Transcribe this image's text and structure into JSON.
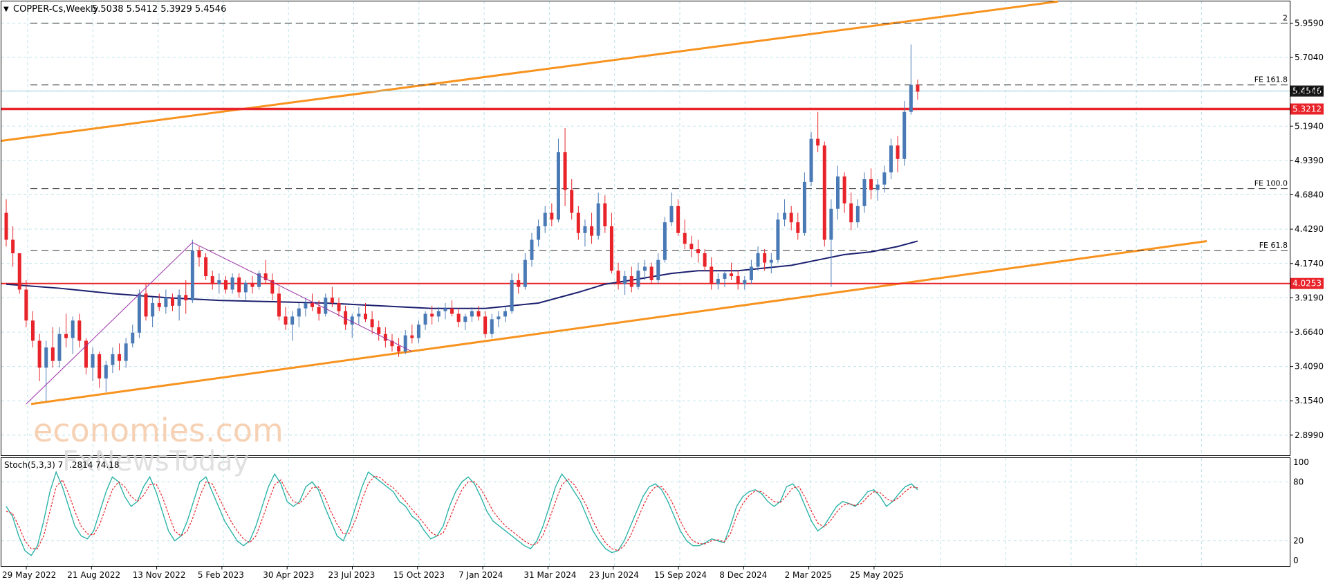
{
  "header": {
    "symbol_label": "COPPER-Cs,Weekly",
    "ohlc": "5.5038 5.5412 5.3929 5.4546"
  },
  "chart_data": [
    {
      "type": "candlestick",
      "title": "COPPER-Cs,Weekly",
      "ylim": [
        2.78,
        6.1
      ],
      "y_ticks": [
        "5.9590",
        "5.7040",
        "5.4546",
        "5.1940",
        "4.9390",
        "4.6840",
        "4.4290",
        "4.1740",
        "3.9190",
        "3.6640",
        "3.4090",
        "3.1540",
        "2.8990"
      ],
      "x_tick_labels": [
        "29 May 2022",
        "21 Aug 2022",
        "13 Nov 2022",
        "5 Feb 2023",
        "30 Apr 2023",
        "23 Jul 2023",
        "15 Oct 2023",
        "7 Jan 2024",
        "31 Mar 2024",
        "23 Jun 2024",
        "15 Sep 2024",
        "8 Dec 2024",
        "2 Mar 2025",
        "25 May 2025"
      ],
      "grid": true,
      "colors": {
        "up": "#4a7ab5",
        "down": "#e8242a",
        "ma": "#1b1f6e",
        "channel": "#f7931e",
        "level": "#e8242a",
        "wedge": "#9b30a8"
      },
      "candles_ohlc": [
        [
          4.55,
          4.65,
          4.3,
          4.35
        ],
        [
          4.35,
          4.45,
          4.15,
          4.25
        ],
        [
          4.25,
          4.2,
          3.95,
          3.98
        ],
        [
          3.98,
          4.05,
          3.7,
          3.75
        ],
        [
          3.75,
          3.82,
          3.55,
          3.6
        ],
        [
          3.6,
          3.65,
          3.3,
          3.4
        ],
        [
          3.4,
          3.6,
          3.15,
          3.55
        ],
        [
          3.55,
          3.7,
          3.4,
          3.45
        ],
        [
          3.45,
          3.7,
          3.4,
          3.65
        ],
        [
          3.65,
          3.8,
          3.55,
          3.62
        ],
        [
          3.62,
          3.78,
          3.5,
          3.75
        ],
        [
          3.75,
          3.8,
          3.55,
          3.6
        ],
        [
          3.6,
          3.62,
          3.35,
          3.4
        ],
        [
          3.4,
          3.55,
          3.3,
          3.5
        ],
        [
          3.5,
          3.52,
          3.25,
          3.32
        ],
        [
          3.32,
          3.45,
          3.22,
          3.42
        ],
        [
          3.42,
          3.55,
          3.36,
          3.5
        ],
        [
          3.5,
          3.58,
          3.38,
          3.45
        ],
        [
          3.45,
          3.62,
          3.4,
          3.58
        ],
        [
          3.58,
          3.72,
          3.55,
          3.66
        ],
        [
          3.66,
          3.98,
          3.62,
          3.95
        ],
        [
          3.95,
          4.02,
          3.75,
          3.78
        ],
        [
          3.78,
          3.92,
          3.7,
          3.88
        ],
        [
          3.88,
          3.95,
          3.82,
          3.85
        ],
        [
          3.85,
          3.98,
          3.8,
          3.92
        ],
        [
          3.92,
          3.95,
          3.82,
          3.86
        ],
        [
          3.86,
          3.98,
          3.75,
          3.94
        ],
        [
          3.94,
          4.05,
          3.8,
          3.9
        ],
        [
          3.9,
          4.35,
          3.88,
          4.27
        ],
        [
          4.27,
          4.3,
          4.15,
          4.22
        ],
        [
          4.22,
          4.25,
          4.05,
          4.08
        ],
        [
          4.08,
          4.12,
          3.98,
          4.02
        ],
        [
          4.02,
          4.1,
          3.95,
          4.05
        ],
        [
          4.05,
          4.08,
          3.95,
          3.98
        ],
        [
          3.98,
          4.1,
          3.95,
          4.07
        ],
        [
          4.07,
          4.1,
          3.92,
          3.96
        ],
        [
          3.96,
          4.05,
          3.9,
          4.03
        ],
        [
          4.03,
          4.08,
          3.95,
          4.0
        ],
        [
          4.0,
          4.12,
          3.98,
          4.1
        ],
        [
          4.1,
          4.2,
          4.02,
          4.05
        ],
        [
          4.05,
          4.1,
          3.9,
          3.95
        ],
        [
          3.95,
          4.0,
          3.75,
          3.78
        ],
        [
          3.78,
          3.85,
          3.68,
          3.72
        ],
        [
          3.72,
          3.82,
          3.6,
          3.78
        ],
        [
          3.78,
          3.88,
          3.7,
          3.84
        ],
        [
          3.84,
          3.92,
          3.78,
          3.88
        ],
        [
          3.88,
          3.95,
          3.82,
          3.85
        ],
        [
          3.85,
          3.9,
          3.75,
          3.8
        ],
        [
          3.8,
          3.95,
          3.78,
          3.92
        ],
        [
          3.92,
          4.0,
          3.85,
          3.88
        ],
        [
          3.88,
          3.92,
          3.78,
          3.82
        ],
        [
          3.82,
          3.86,
          3.68,
          3.72
        ],
        [
          3.72,
          3.8,
          3.62,
          3.78
        ],
        [
          3.78,
          3.85,
          3.72,
          3.8
        ],
        [
          3.8,
          3.88,
          3.74,
          3.76
        ],
        [
          3.76,
          3.82,
          3.65,
          3.7
        ],
        [
          3.7,
          3.75,
          3.6,
          3.65
        ],
        [
          3.65,
          3.7,
          3.55,
          3.6
        ],
        [
          3.6,
          3.65,
          3.52,
          3.56
        ],
        [
          3.56,
          3.62,
          3.48,
          3.52
        ],
        [
          3.52,
          3.68,
          3.5,
          3.64
        ],
        [
          3.64,
          3.72,
          3.58,
          3.62
        ],
        [
          3.62,
          3.75,
          3.58,
          3.72
        ],
        [
          3.72,
          3.82,
          3.68,
          3.8
        ],
        [
          3.8,
          3.86,
          3.72,
          3.78
        ],
        [
          3.78,
          3.85,
          3.74,
          3.82
        ],
        [
          3.82,
          3.88,
          3.76,
          3.84
        ],
        [
          3.84,
          3.9,
          3.78,
          3.8
        ],
        [
          3.8,
          3.84,
          3.7,
          3.74
        ],
        [
          3.74,
          3.8,
          3.68,
          3.78
        ],
        [
          3.78,
          3.85,
          3.74,
          3.82
        ],
        [
          3.82,
          3.86,
          3.75,
          3.78
        ],
        [
          3.78,
          3.82,
          3.62,
          3.65
        ],
        [
          3.65,
          3.8,
          3.62,
          3.76
        ],
        [
          3.76,
          3.82,
          3.7,
          3.78
        ],
        [
          3.78,
          3.85,
          3.74,
          3.82
        ],
        [
          3.82,
          4.1,
          3.8,
          4.05
        ],
        [
          4.05,
          4.1,
          3.95,
          4.0
        ],
        [
          4.0,
          4.25,
          3.98,
          4.2
        ],
        [
          4.2,
          4.4,
          4.15,
          4.35
        ],
        [
          4.35,
          4.5,
          4.3,
          4.45
        ],
        [
          4.45,
          4.6,
          4.4,
          4.55
        ],
        [
          4.55,
          4.62,
          4.45,
          4.5
        ],
        [
          4.5,
          5.1,
          4.48,
          5.0
        ],
        [
          5.0,
          5.18,
          4.6,
          4.72
        ],
        [
          4.72,
          4.8,
          4.5,
          4.55
        ],
        [
          4.55,
          4.6,
          4.35,
          4.4
        ],
        [
          4.4,
          4.5,
          4.3,
          4.45
        ],
        [
          4.45,
          4.55,
          4.32,
          4.38
        ],
        [
          4.38,
          4.7,
          4.35,
          4.62
        ],
        [
          4.62,
          4.68,
          4.4,
          4.45
        ],
        [
          4.45,
          4.55,
          4.1,
          4.12
        ],
        [
          4.12,
          4.18,
          3.98,
          4.02
        ],
        [
          4.02,
          4.12,
          3.94,
          4.08
        ],
        [
          4.08,
          4.15,
          3.96,
          4.0
        ],
        [
          4.0,
          4.18,
          3.98,
          4.12
        ],
        [
          4.12,
          4.2,
          4.05,
          4.15
        ],
        [
          4.15,
          4.18,
          4.02,
          4.05
        ],
        [
          4.05,
          4.25,
          4.02,
          4.2
        ],
        [
          4.2,
          4.52,
          4.18,
          4.48
        ],
        [
          4.48,
          4.7,
          4.45,
          4.6
        ],
        [
          4.6,
          4.65,
          4.38,
          4.4
        ],
        [
          4.4,
          4.5,
          4.28,
          4.32
        ],
        [
          4.32,
          4.38,
          4.22,
          4.28
        ],
        [
          4.28,
          4.35,
          4.18,
          4.25
        ],
        [
          4.25,
          4.28,
          4.12,
          4.15
        ],
        [
          4.15,
          4.22,
          3.98,
          4.02
        ],
        [
          4.02,
          4.1,
          3.98,
          4.06
        ],
        [
          4.06,
          4.12,
          4.0,
          4.1
        ],
        [
          4.1,
          4.18,
          4.05,
          4.08
        ],
        [
          4.08,
          4.12,
          3.98,
          4.02
        ],
        [
          4.02,
          4.08,
          3.98,
          4.05
        ],
        [
          4.05,
          4.2,
          4.02,
          4.15
        ],
        [
          4.15,
          4.3,
          4.12,
          4.25
        ],
        [
          4.25,
          4.28,
          4.12,
          4.18
        ],
        [
          4.18,
          4.25,
          4.1,
          4.2
        ],
        [
          4.2,
          4.55,
          4.18,
          4.5
        ],
        [
          4.5,
          4.65,
          4.45,
          4.55
        ],
        [
          4.55,
          4.6,
          4.42,
          4.48
        ],
        [
          4.48,
          4.55,
          4.35,
          4.4
        ],
        [
          4.4,
          4.85,
          4.38,
          4.78
        ],
        [
          4.78,
          5.15,
          4.75,
          5.1
        ],
        [
          5.1,
          5.3,
          5.0,
          5.05
        ],
        [
          5.05,
          5.08,
          4.3,
          4.35
        ],
        [
          4.35,
          4.65,
          4.0,
          4.58
        ],
        [
          4.58,
          4.9,
          4.5,
          4.82
        ],
        [
          4.82,
          4.85,
          4.55,
          4.62
        ],
        [
          4.62,
          4.7,
          4.42,
          4.48
        ],
        [
          4.48,
          4.65,
          4.44,
          4.6
        ],
        [
          4.6,
          4.85,
          4.55,
          4.8
        ],
        [
          4.8,
          4.88,
          4.65,
          4.72
        ],
        [
          4.72,
          4.8,
          4.64,
          4.76
        ],
        [
          4.76,
          4.9,
          4.7,
          4.85
        ],
        [
          4.85,
          5.1,
          4.8,
          5.05
        ],
        [
          5.05,
          5.12,
          4.85,
          4.95
        ],
        [
          4.95,
          5.38,
          4.9,
          5.3
        ],
        [
          5.3,
          5.8,
          5.28,
          5.5
        ],
        [
          5.5,
          5.54,
          5.39,
          5.45
        ]
      ],
      "moving_average_path": [
        [
          0,
          4.02
        ],
        [
          8,
          3.99
        ],
        [
          16,
          3.95
        ],
        [
          24,
          3.92
        ],
        [
          32,
          3.9
        ],
        [
          40,
          3.89
        ],
        [
          48,
          3.88
        ],
        [
          56,
          3.86
        ],
        [
          64,
          3.84
        ],
        [
          72,
          3.84
        ],
        [
          80,
          3.88
        ],
        [
          86,
          3.96
        ],
        [
          90,
          4.02
        ],
        [
          94,
          4.05
        ],
        [
          100,
          4.1
        ],
        [
          104,
          4.12
        ],
        [
          110,
          4.12
        ],
        [
          114,
          4.14
        ],
        [
          118,
          4.16
        ],
        [
          122,
          4.2
        ],
        [
          126,
          4.24
        ],
        [
          130,
          4.26
        ],
        [
          134,
          4.3
        ],
        [
          137,
          4.34
        ]
      ],
      "levels": [
        {
          "label": "5.3212",
          "value": 5.3212,
          "style": "solid-thick"
        },
        {
          "label": "4.0253",
          "value": 4.0253,
          "style": "solid"
        }
      ],
      "fib_levels": [
        {
          "label": "2",
          "value": 5.959
        },
        {
          "label": "FE 161.8",
          "value": 5.5
        },
        {
          "label": "FE 100.0",
          "value": 4.73
        },
        {
          "label": "FE 61.8",
          "value": 4.27
        }
      ],
      "current_price_label": "5.4546",
      "price_tag_colors": {
        "current": "#1a1a1a",
        "level": "#e8242a"
      }
    },
    {
      "type": "line",
      "title": "Stoch(5,3,3) 7",
      "legend_values": ".2814 74.18",
      "ylim": [
        0,
        100
      ],
      "y_ticks": [
        "100",
        "80",
        "20",
        "0"
      ],
      "series": [
        {
          "name": "main",
          "color": "#2bb3a8",
          "values": [
            55,
            45,
            25,
            10,
            5,
            15,
            40,
            70,
            90,
            75,
            55,
            35,
            25,
            22,
            30,
            50,
            70,
            85,
            80,
            65,
            55,
            60,
            75,
            85,
            70,
            50,
            30,
            20,
            25,
            40,
            60,
            80,
            85,
            70,
            55,
            40,
            30,
            20,
            15,
            20,
            35,
            55,
            75,
            88,
            78,
            60,
            55,
            60,
            75,
            80,
            72,
            55,
            40,
            25,
            20,
            35,
            55,
            75,
            90,
            85,
            80,
            75,
            70,
            60,
            55,
            45,
            40,
            30,
            22,
            25,
            35,
            55,
            70,
            80,
            85,
            78,
            65,
            50,
            40,
            35,
            30,
            25,
            20,
            15,
            12,
            20,
            35,
            55,
            75,
            88,
            80,
            70,
            60,
            45,
            30,
            20,
            12,
            8,
            10,
            20,
            35,
            50,
            65,
            75,
            78,
            72,
            60,
            45,
            30,
            20,
            15,
            15,
            18,
            22,
            20,
            18,
            35,
            55,
            65,
            70,
            72,
            68,
            60,
            55,
            60,
            75,
            78,
            70,
            55,
            40,
            30,
            35,
            45,
            55,
            60,
            58,
            55,
            62,
            70,
            72,
            65,
            55,
            60,
            68,
            75,
            78,
            72
          ]
        },
        {
          "name": "signal",
          "color": "#e8242a",
          "values": [
            50,
            48,
            35,
            20,
            12,
            12,
            25,
            50,
            75,
            82,
            68,
            50,
            35,
            27,
            26,
            37,
            55,
            72,
            80,
            75,
            65,
            60,
            66,
            77,
            78,
            65,
            47,
            30,
            25,
            30,
            45,
            65,
            80,
            78,
            65,
            52,
            40,
            30,
            22,
            18,
            25,
            42,
            60,
            77,
            82,
            70,
            60,
            58,
            65,
            74,
            75,
            65,
            50,
            37,
            27,
            28,
            42,
            62,
            78,
            86,
            84,
            78,
            74,
            67,
            60,
            52,
            45,
            37,
            29,
            25,
            28,
            42,
            58,
            72,
            80,
            80,
            73,
            62,
            50,
            42,
            35,
            30,
            25,
            20,
            16,
            17,
            26,
            42,
            60,
            77,
            83,
            77,
            67,
            55,
            40,
            28,
            18,
            12,
            10,
            15,
            25,
            40,
            55,
            68,
            75,
            75,
            67,
            55,
            40,
            28,
            20,
            17,
            17,
            20,
            21,
            19,
            27,
            45,
            58,
            66,
            71,
            70,
            65,
            60,
            59,
            66,
            74,
            75,
            64,
            50,
            38,
            34,
            40,
            49,
            56,
            58,
            56,
            58,
            65,
            70,
            69,
            63,
            60,
            64,
            70,
            75,
            74
          ]
        }
      ]
    }
  ],
  "watermark": {
    "brand_line_1": "economies.com",
    "brand_line_2": "FxNewsToday"
  }
}
